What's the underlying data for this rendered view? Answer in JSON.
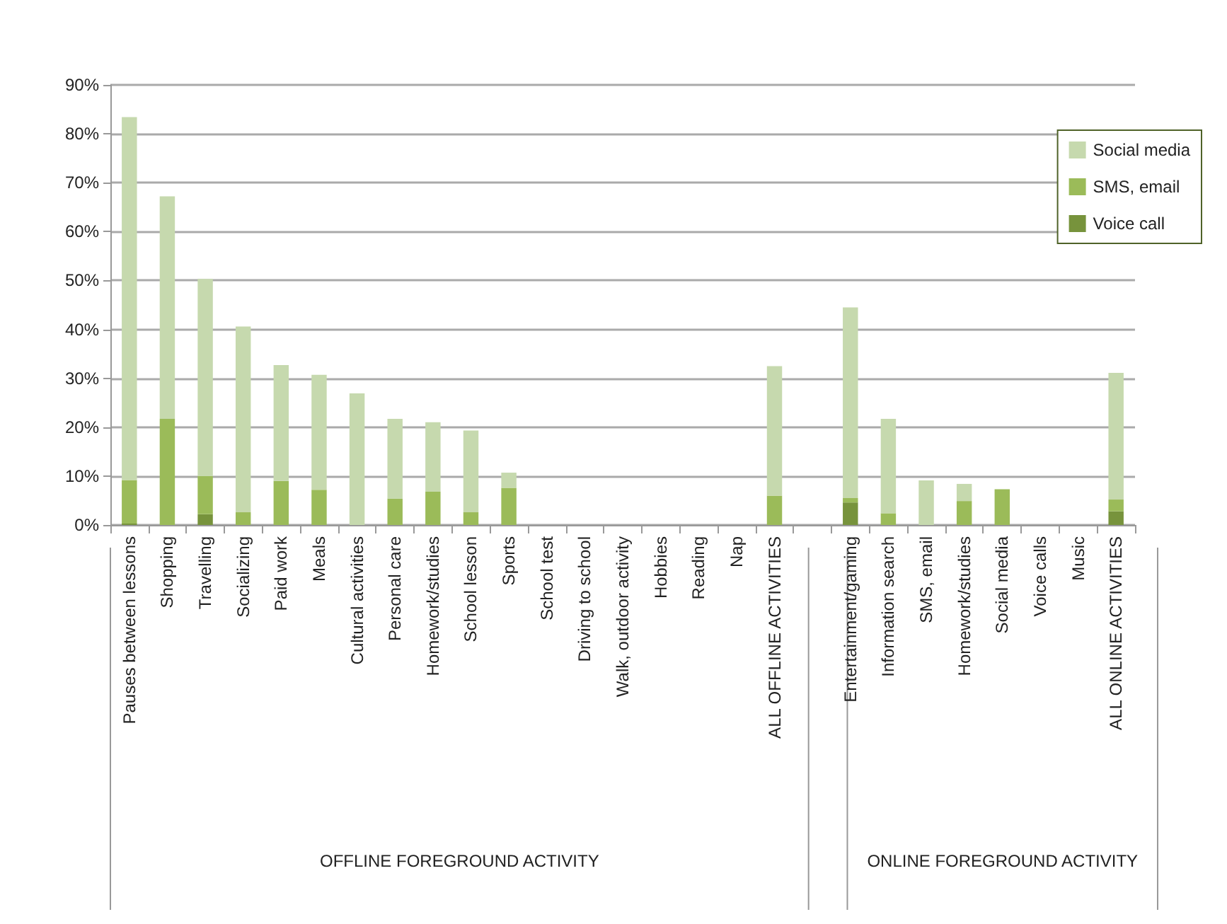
{
  "chart_data": {
    "type": "bar",
    "stacked": true,
    "categories": [
      "Pauses between lessons",
      "Shopping",
      "Travelling",
      "Socializing",
      "Paid work",
      "Meals",
      "Cultural activities",
      "Personal care",
      "Homework/studies",
      "School lesson",
      "Sports",
      "School test",
      "Driving to school",
      "Walk, outdoor activity",
      "Hobbies",
      "Reading",
      "Nap",
      "ALL OFFLINE ACTIVITIES",
      null,
      "Entertainment/gaming",
      "Information search",
      "SMS, email",
      "Homework/studies",
      "Social media",
      "Voice calls",
      "Music",
      "ALL ONLINE ACTIVITIES"
    ],
    "series": [
      {
        "name": "Voice call",
        "color": "#77933c",
        "values": [
          0.3,
          0,
          2.2,
          0,
          0,
          0,
          0,
          0,
          0,
          0,
          0,
          0,
          0,
          0,
          0,
          0,
          0,
          0,
          null,
          4.6,
          0,
          0,
          0,
          0,
          0,
          0,
          2.8
        ]
      },
      {
        "name": "SMS, email",
        "color": "#9bbb59",
        "values": [
          8.9,
          21.7,
          7.8,
          2.6,
          9.0,
          7.2,
          0,
          5.4,
          6.8,
          2.6,
          7.6,
          0,
          0,
          0,
          0,
          0,
          0,
          6.0,
          null,
          0.9,
          2.4,
          0,
          4.9,
          7.3,
          0,
          0,
          2.4
        ]
      },
      {
        "name": "Social media",
        "color": "#c6d9ae",
        "values": [
          74.2,
          45.5,
          40.3,
          38.0,
          23.7,
          23.5,
          26.9,
          16.3,
          14.2,
          16.7,
          3.1,
          0,
          0,
          0,
          0,
          0,
          0,
          26.5,
          null,
          39.0,
          19.3,
          9.1,
          3.5,
          0,
          0,
          0,
          25.9
        ]
      }
    ],
    "ylim": [
      0,
      90
    ],
    "yticks": [
      {
        "value": 0,
        "label": "0%"
      },
      {
        "value": 10,
        "label": "10%"
      },
      {
        "value": 20,
        "label": "20%"
      },
      {
        "value": 30,
        "label": "30%"
      },
      {
        "value": 40,
        "label": "40%"
      },
      {
        "value": 50,
        "label": "50%"
      },
      {
        "value": 60,
        "label": "60%"
      },
      {
        "value": 70,
        "label": "70%"
      },
      {
        "value": 80,
        "label": "80%"
      },
      {
        "value": 90,
        "label": "90%"
      }
    ],
    "grid": "y",
    "legend": "top right",
    "annotations": [
      "OFFLINE FOREGROUND ACTIVITY",
      "ONLINE FOREGROUND ACTIVITY"
    ]
  }
}
